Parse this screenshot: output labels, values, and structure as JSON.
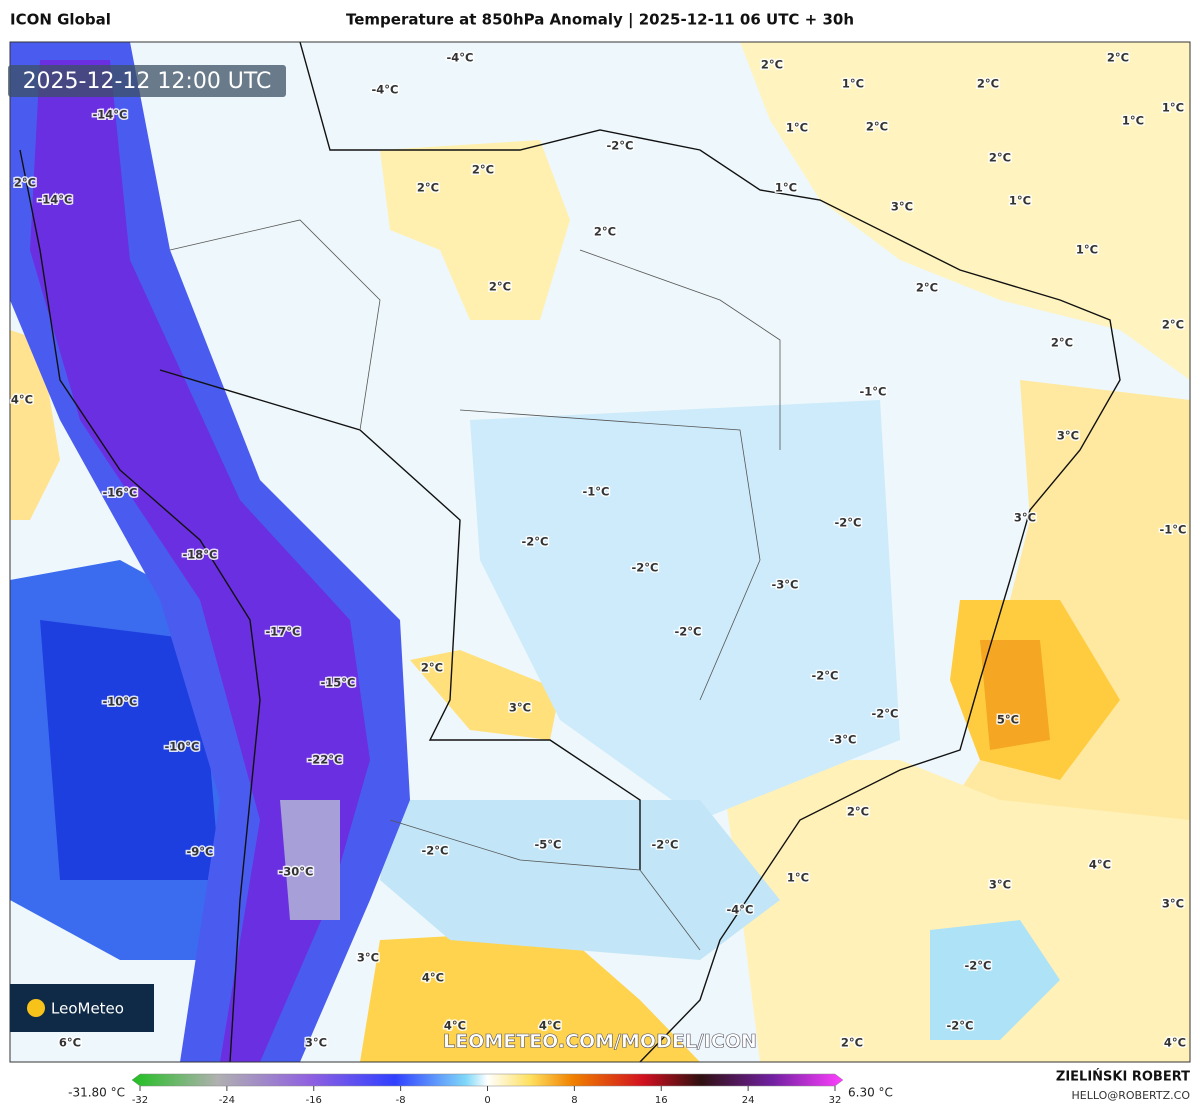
{
  "header": {
    "model": "ICON Global",
    "title": "Temperature at 850hPa Anomaly | 2025-12-11 06 UTC + 30h"
  },
  "map": {
    "valid_time": "2025-12-12 12:00 UTC",
    "watermark": "LEOMETEO.COM/MODEL/ICON",
    "logo": "LeoMeteo",
    "labels": [
      "-4°C",
      "-4°C",
      "-14°C",
      "2°C",
      "-14°C",
      "2°C",
      "2°C",
      "-2°C",
      "2°C",
      "2°C",
      "2°C",
      "1°C",
      "2°C",
      "2°C",
      "1°C",
      "1°C",
      "1°C",
      "2°C",
      "2°C",
      "1°C",
      "3°C",
      "1°C",
      "1°C",
      "2°C",
      "2°C",
      "2°C",
      "-1°C",
      "4°C",
      "3°C",
      "-16°C",
      "-1°C",
      "-2°C",
      "3°C",
      "-1°C",
      "-18°C",
      "-2°C",
      "-2°C",
      "-3°C",
      "-17°C",
      "-2°C",
      "2°C",
      "-15°C",
      "-2°C",
      "3°C",
      "-10°C",
      "-2°C",
      "5°C",
      "-10°C",
      "-3°C",
      "-22°C",
      "2°C",
      "-2°C",
      "-5°C",
      "-2°C",
      "-9°C",
      "4°C",
      "1°C",
      "3°C",
      "-30°C",
      "3°C",
      "-4°C",
      "3°C",
      "-2°C",
      "4°C",
      "4°C",
      "4°C",
      "-2°C",
      "6°C",
      "3°C",
      "2°C",
      "4°C"
    ]
  },
  "colorbar": {
    "min_label": "-31.80 °C",
    "max_label": "6.30 °C",
    "ticks": [
      -32,
      -24,
      -16,
      -8,
      0,
      8,
      16,
      24,
      32
    ]
  },
  "footer": {
    "author": "ZIELIŃSKI ROBERT",
    "email": "HELLO@ROBERTZ.CO"
  }
}
